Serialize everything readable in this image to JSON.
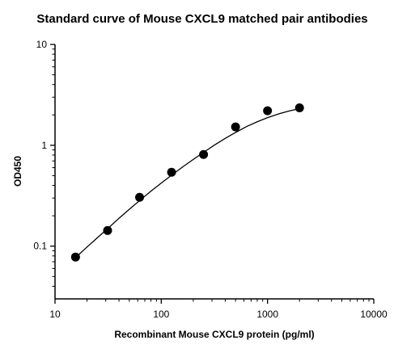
{
  "chart_data": {
    "type": "scatter",
    "title": "Standard curve of Mouse CXCL9 matched pair antibodies",
    "xlabel": "Recombinant Mouse CXCL9 protein (pg/ml)",
    "ylabel": "OD450",
    "xscale": "log",
    "yscale": "log",
    "xlim": [
      10,
      10000
    ],
    "ylim": [
      0.03,
      10
    ],
    "x_ticks": [
      {
        "value": 10,
        "label": "10"
      },
      {
        "value": 100,
        "label": "100"
      },
      {
        "value": 1000,
        "label": "1000"
      },
      {
        "value": 10000,
        "label": "10000"
      }
    ],
    "y_ticks": [
      {
        "value": 0.1,
        "label": "0.1"
      },
      {
        "value": 1,
        "label": "1"
      },
      {
        "value": 10,
        "label": "10"
      }
    ],
    "grid": false,
    "legend": "none",
    "marker_color": "#000000",
    "curve_color": "#000000",
    "series": [
      {
        "x": [
          15.6,
          31.25,
          62.5,
          125,
          250,
          500,
          1000,
          2000
        ],
        "y": [
          0.078,
          0.143,
          0.305,
          0.54,
          0.81,
          1.52,
          2.2,
          2.35
        ]
      }
    ],
    "fit_curve": {
      "x": [
        15.6,
        20,
        25,
        31.25,
        40,
        50,
        62.5,
        80,
        100,
        125,
        160,
        200,
        250,
        320,
        400,
        500,
        640,
        800,
        1000,
        1300,
        1600,
        2000
      ],
      "y": [
        0.077,
        0.098,
        0.121,
        0.149,
        0.189,
        0.232,
        0.283,
        0.351,
        0.422,
        0.505,
        0.613,
        0.724,
        0.851,
        1.013,
        1.17,
        1.34,
        1.54,
        1.71,
        1.88,
        2.06,
        2.19,
        2.31
      ]
    }
  }
}
